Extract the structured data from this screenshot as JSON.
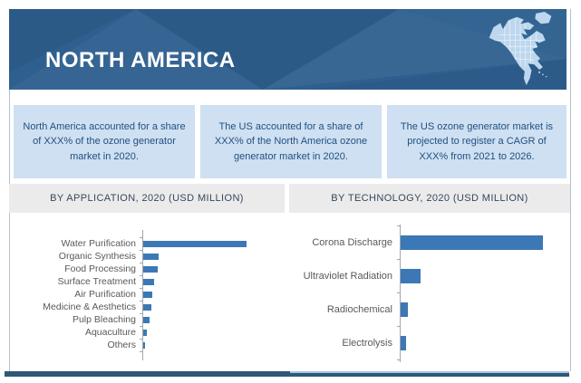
{
  "header": {
    "title": "NORTH AMERICA",
    "banner_color": "#2e5f8f",
    "map_icon": "north-america-map",
    "map_color": "#bdd7ee"
  },
  "highlight_boxes": [
    {
      "text": "North America accounted for a share of XXX% of the ozone generator market in 2020."
    },
    {
      "text": "The US accounted for a share of XXX% of the North America ozone generator market in 2020."
    },
    {
      "text": "The US ozone generator market is projected to register a CAGR of XXX% from 2021 to 2026."
    }
  ],
  "colors": {
    "bar": "#3c78b5",
    "box_bg": "#cee0f1",
    "box_text": "#215083",
    "section_header_bg": "#ebebeb",
    "section_header_text": "#35485c",
    "axis": "#a6a6a6",
    "category_label": "#595959",
    "bottom_accent": "#2f5877"
  },
  "chart_data": [
    {
      "type": "bar",
      "orientation": "horizontal",
      "title": "BY APPLICATION, 2020 (USD MILLION)",
      "categories": [
        "Water Purification",
        "Organic Synthesis",
        "Food Processing",
        "Surface Treatment",
        "Air Purification",
        "Medicine & Aesthetics",
        "Pulp Bleaching",
        "Aquaculture",
        "Others"
      ],
      "values": [
        114,
        17,
        16,
        12,
        10,
        9,
        7,
        4,
        2
      ],
      "xlabel": "",
      "ylabel": "",
      "value_axis_labels_visible": false,
      "legend": "none",
      "grid": "off",
      "note": "Numeric axis not shown in source (placeholder XXX infographic); values are relative lengths with Water Purification = 114 units (max)."
    },
    {
      "type": "bar",
      "orientation": "horizontal",
      "title": "BY TECHNOLOGY, 2020 (USD MILLION)",
      "categories": [
        "Corona Discharge",
        "Ultraviolet Radiation",
        "Radiochemical",
        "Electrolysis"
      ],
      "values": [
        157,
        22,
        8,
        6
      ],
      "xlabel": "",
      "ylabel": "",
      "value_axis_labels_visible": false,
      "legend": "none",
      "grid": "off",
      "note": "Numeric axis not shown in source; values are relative lengths with Corona Discharge = 157 units (max)."
    }
  ]
}
